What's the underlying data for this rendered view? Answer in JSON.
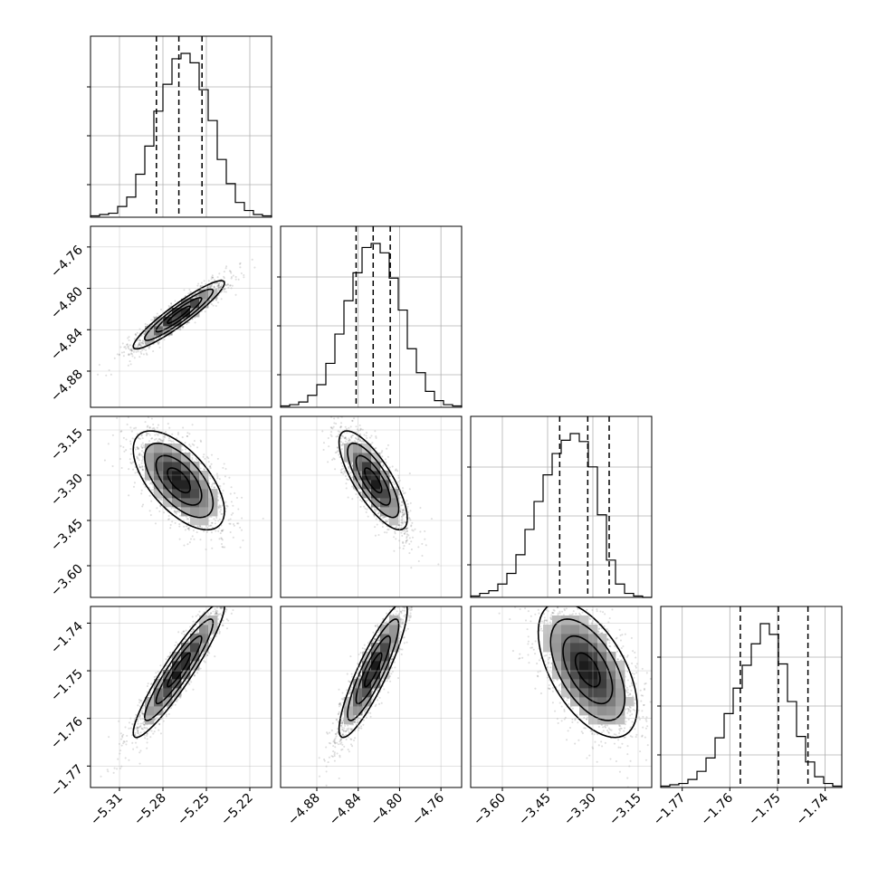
{
  "chart_data": {
    "type": "corner",
    "grid": true,
    "parameters": [
      {
        "axis_range": [
          -5.33,
          -5.205
        ],
        "ticks": [
          -5.31,
          -5.28,
          -5.25,
          -5.22
        ],
        "tick_labels": [
          "−5.31",
          "−5.28",
          "−5.25",
          "−5.22"
        ],
        "quantiles": [
          -5.2845,
          -5.269,
          -5.253
        ],
        "histogram_counts": [
          1,
          2,
          3,
          8,
          15,
          32,
          53,
          79,
          99,
          118,
          122,
          115,
          95,
          72,
          43,
          25,
          11,
          5,
          2,
          1
        ]
      },
      {
        "axis_range": [
          -4.915,
          -4.74
        ],
        "ticks": [
          -4.88,
          -4.84,
          -4.8,
          -4.76
        ],
        "tick_labels": [
          "−4.88",
          "−4.84",
          "−4.80",
          "−4.76"
        ],
        "quantiles": [
          -4.842,
          -4.8255,
          -4.809
        ],
        "histogram_counts": [
          1,
          2,
          4,
          9,
          17,
          33,
          55,
          80,
          101,
          120,
          123,
          116,
          97,
          73,
          44,
          26,
          12,
          5,
          2,
          1
        ]
      },
      {
        "axis_range": [
          -3.705,
          -3.105
        ],
        "ticks": [
          -3.6,
          -3.45,
          -3.3,
          -3.15
        ],
        "tick_labels": [
          "−3.60",
          "−3.45",
          "−3.30",
          "−3.15"
        ],
        "quantiles": [
          -3.41,
          -3.317,
          -3.246
        ],
        "histogram_counts": [
          1,
          3,
          5,
          10,
          18,
          32,
          51,
          72,
          92,
          108,
          118,
          123,
          117,
          98,
          62,
          28,
          10,
          3,
          1,
          0
        ]
      },
      {
        "axis_range": [
          -1.7745,
          -1.7365
        ],
        "ticks": [
          -1.77,
          -1.76,
          -1.75,
          -1.74
        ],
        "tick_labels": [
          "−1.77",
          "−1.76",
          "−1.75",
          "−1.74"
        ],
        "quantiles": [
          -1.7578,
          -1.7498,
          -1.7436
        ],
        "histogram_counts": [
          1,
          2,
          3,
          6,
          12,
          22,
          37,
          55,
          74,
          91,
          107,
          122,
          114,
          92,
          64,
          38,
          19,
          8,
          3,
          1
        ]
      }
    ],
    "correlations": {
      "1-0": 0.93,
      "2-0": -0.62,
      "2-1": -0.77,
      "3-0": 0.93,
      "3-1": 0.88,
      "3-2": -0.55
    },
    "contour_levels": [
      "0.5 sigma",
      "1 sigma",
      "1.5 sigma",
      "2 sigma"
    ]
  }
}
